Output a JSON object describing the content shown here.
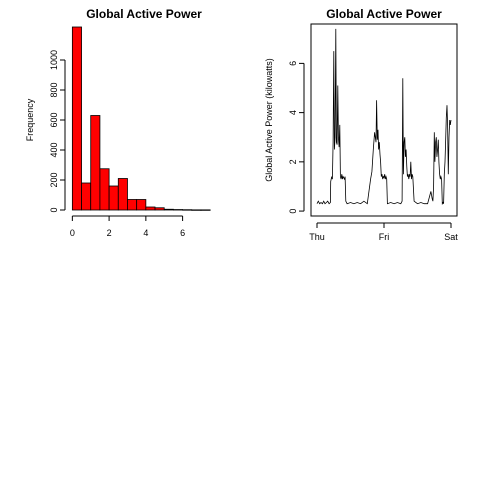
{
  "colors": {
    "histogram_fill": "#ff0000",
    "stroke": "#000000",
    "line": "#000000",
    "background": "#ffffff"
  },
  "chart_data": [
    {
      "type": "bar",
      "subtype": "histogram",
      "title": "Global Active Power",
      "xlabel": "",
      "ylabel": "Frequency",
      "bin_edges": [
        0,
        0.5,
        1,
        1.5,
        2,
        2.5,
        3,
        3.5,
        4,
        4.5,
        5,
        5.5,
        6,
        6.5,
        7,
        7.5
      ],
      "values": [
        1220,
        180,
        630,
        275,
        160,
        210,
        70,
        70,
        20,
        15,
        5,
        3,
        2,
        1,
        1
      ],
      "xlim": [
        -0.4,
        7.6
      ],
      "ylim": [
        -40,
        1240
      ],
      "xticks": [
        0,
        2,
        4,
        6
      ],
      "xtick_labels": [
        "0",
        "2",
        "4",
        "6"
      ],
      "yticks": [
        0,
        200,
        400,
        600,
        800,
        1000
      ],
      "ytick_labels": [
        "0",
        "200",
        "400",
        "600",
        "800",
        "1000"
      ],
      "grid": false,
      "legend": "none"
    },
    {
      "type": "line",
      "title": "Global Active Power",
      "xlabel": "",
      "ylabel": "Global Active Power (kilowatts)",
      "x_unit": "days",
      "xlim": [
        0,
        2
      ],
      "ylim": [
        -0.2,
        7.6
      ],
      "xticks": [
        0,
        1,
        2
      ],
      "xtick_labels": [
        "Thu",
        "Fri",
        "Sat"
      ],
      "yticks": [
        0,
        2,
        4,
        6
      ],
      "ytick_labels": [
        "0",
        "2",
        "4",
        "6"
      ],
      "grid": false,
      "legend": "none",
      "series": [
        {
          "x": [
            0,
            0.02,
            0.04,
            0.06,
            0.08,
            0.1,
            0.12,
            0.14,
            0.16,
            0.18,
            0.2,
            0.205,
            0.22,
            0.23,
            0.24,
            0.25,
            0.26,
            0.27,
            0.28,
            0.29,
            0.3,
            0.31,
            0.32,
            0.33,
            0.34,
            0.35,
            0.36,
            0.37,
            0.38,
            0.39,
            0.4,
            0.41,
            0.42,
            0.43,
            0.45,
            0.5,
            0.55,
            0.6,
            0.65,
            0.7,
            0.75,
            0.8,
            0.82,
            0.84,
            0.86,
            0.88,
            0.89,
            0.9,
            0.91,
            0.92,
            0.93,
            0.94,
            0.95,
            0.96,
            0.97,
            0.98,
            0.99,
            1,
            1.01,
            1.02,
            1.03,
            1.04,
            1.05,
            1.1,
            1.15,
            1.2,
            1.25,
            1.27,
            1.28,
            1.29,
            1.3,
            1.31,
            1.32,
            1.33,
            1.34,
            1.35,
            1.36,
            1.37,
            1.38,
            1.39,
            1.4,
            1.41,
            1.42,
            1.43,
            1.45,
            1.5,
            1.55,
            1.6,
            1.65,
            1.7,
            1.72,
            1.73,
            1.74,
            1.75,
            1.76,
            1.77,
            1.78,
            1.79,
            1.8,
            1.81,
            1.82,
            1.83,
            1.84,
            1.85,
            1.86,
            1.87,
            1.88,
            1.89,
            1.9,
            1.91,
            1.92,
            1.93,
            1.94,
            1.95,
            1.96,
            1.97,
            1.98,
            1.99,
            2
          ],
          "y": [
            0.3,
            0.4,
            0.3,
            0.35,
            0.3,
            0.4,
            0.3,
            0.35,
            0.4,
            0.3,
            0.35,
            1.2,
            1.4,
            1.3,
            2.8,
            6.5,
            2.5,
            3.0,
            7.4,
            2.8,
            2.7,
            5.1,
            3.0,
            2.6,
            3.5,
            1.4,
            1.3,
            1.5,
            1.3,
            1.4,
            1.35,
            1.3,
            1.4,
            0.4,
            0.3,
            0.35,
            0.3,
            0.35,
            0.3,
            0.4,
            0.3,
            1.3,
            1.6,
            2.5,
            3.2,
            2.8,
            4.5,
            2.9,
            3.3,
            2.5,
            2.8,
            2.3,
            2.0,
            1.4,
            1.5,
            1.3,
            1.4,
            1.35,
            1.5,
            1.3,
            1.4,
            1.3,
            0.3,
            0.35,
            0.3,
            0.35,
            0.3,
            0.4,
            5.4,
            1.5,
            2.8,
            3.0,
            2.2,
            2.5,
            1.8,
            1.4,
            1.5,
            1.3,
            1.5,
            1.4,
            2.0,
            1.3,
            1.5,
            1.4,
            0.4,
            0.3,
            0.35,
            0.3,
            0.3,
            0.8,
            0.5,
            0.4,
            1.0,
            3.2,
            2.0,
            2.8,
            3.0,
            2.2,
            2.5,
            2.9,
            2.0,
            1.5,
            1.3,
            1.4,
            1.3,
            0.3,
            0.35,
            0.3,
            1.5,
            2.0,
            2.8,
            3.8,
            4.3,
            3.5,
            1.5,
            3.0,
            3.7,
            3.5,
            3.7
          ]
        }
      ]
    }
  ]
}
